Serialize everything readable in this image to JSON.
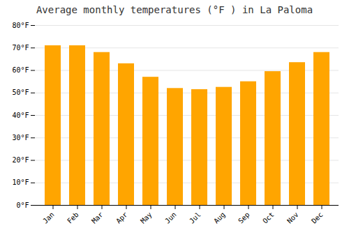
{
  "chart_data": {
    "type": "bar",
    "title": "Average monthly temperatures (°F ) in La Paloma",
    "categories": [
      "Jan",
      "Feb",
      "Mar",
      "Apr",
      "May",
      "Jun",
      "Jul",
      "Aug",
      "Sep",
      "Oct",
      "Nov",
      "Dec"
    ],
    "values": [
      71,
      71,
      68,
      63,
      57,
      52,
      51.5,
      52.5,
      55,
      59.5,
      63.5,
      68
    ],
    "color": "#FFA500",
    "ylim": [
      0,
      80
    ],
    "yticks": [
      {
        "value": 0,
        "label": "0°F"
      },
      {
        "value": 10,
        "label": "10°F"
      },
      {
        "value": 20,
        "label": "20°F"
      },
      {
        "value": 30,
        "label": "30°F"
      },
      {
        "value": 40,
        "label": "40°F"
      },
      {
        "value": 50,
        "label": "50°F"
      },
      {
        "value": 60,
        "label": "60°F"
      },
      {
        "value": 70,
        "label": "70°F"
      },
      {
        "value": 80,
        "label": "80°F"
      }
    ],
    "grid": true
  }
}
